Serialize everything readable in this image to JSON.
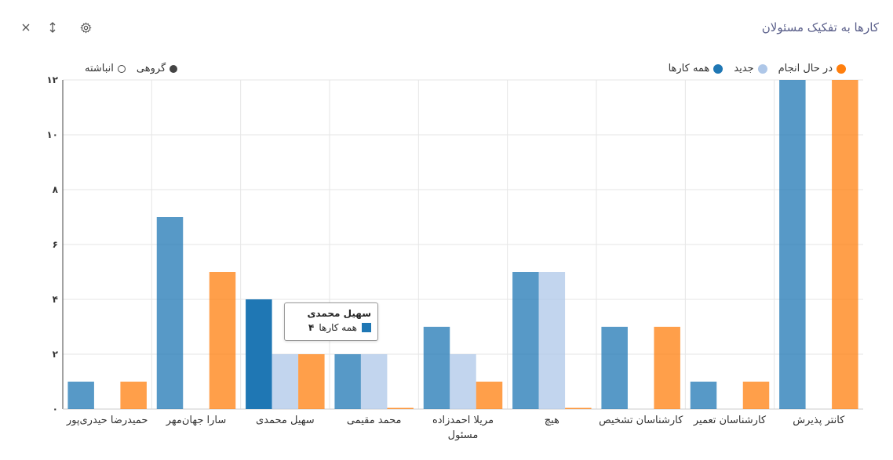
{
  "toolbar": {
    "close_icon": "close-icon",
    "sort_icon": "sort-vertical-icon",
    "settings_icon": "gear-icon"
  },
  "panel": {
    "title": "کارها به تفکیک مسئولان"
  },
  "legend": {
    "series": [
      {
        "label": "همه کارها",
        "color": "#1f77b4"
      },
      {
        "label": "جدید",
        "color": "#aec7e8"
      },
      {
        "label": "در حال انجام",
        "color": "#ff7f0e"
      }
    ],
    "modes": [
      {
        "label": "گروهی",
        "selected": true
      },
      {
        "label": "انباشته",
        "selected": false
      }
    ]
  },
  "tooltip": {
    "title": "سهیل محمدی",
    "series_label": "همه کارها",
    "value": "۴"
  },
  "chart_data": {
    "type": "bar",
    "xlabel": "مسئول",
    "ylabel": "",
    "ylim": [
      0,
      12
    ],
    "yticks": [
      "۰",
      "۲",
      "۴",
      "۶",
      "۸",
      "۱۰",
      "۱۲"
    ],
    "grid": true,
    "legend_position": "top-right",
    "categories": [
      "کانتر پذیرش",
      "کارشناسان تعمیر",
      "کارشناسان تشخیص",
      "هیچ",
      "مریلا احمدزاده",
      "محمد مقیمی",
      "سهیل محمدی",
      "سارا جهان‌مهر",
      "حمیدرضا حیدری‌پور"
    ],
    "series": [
      {
        "name": "همه کارها",
        "color": "#1f77b4",
        "values": [
          12,
          1,
          3,
          5,
          3,
          2,
          4,
          7,
          1
        ]
      },
      {
        "name": "جدید",
        "color": "#aec7e8",
        "values": [
          0,
          0,
          0,
          5,
          2,
          2,
          2,
          0,
          0
        ]
      },
      {
        "name": "در حال انجام",
        "color": "#ff7f0e",
        "values": [
          12,
          1,
          3,
          0,
          1,
          0,
          2,
          5,
          1
        ]
      }
    ],
    "highlighted_category_index": 6,
    "highlighted_series_index": 0
  }
}
